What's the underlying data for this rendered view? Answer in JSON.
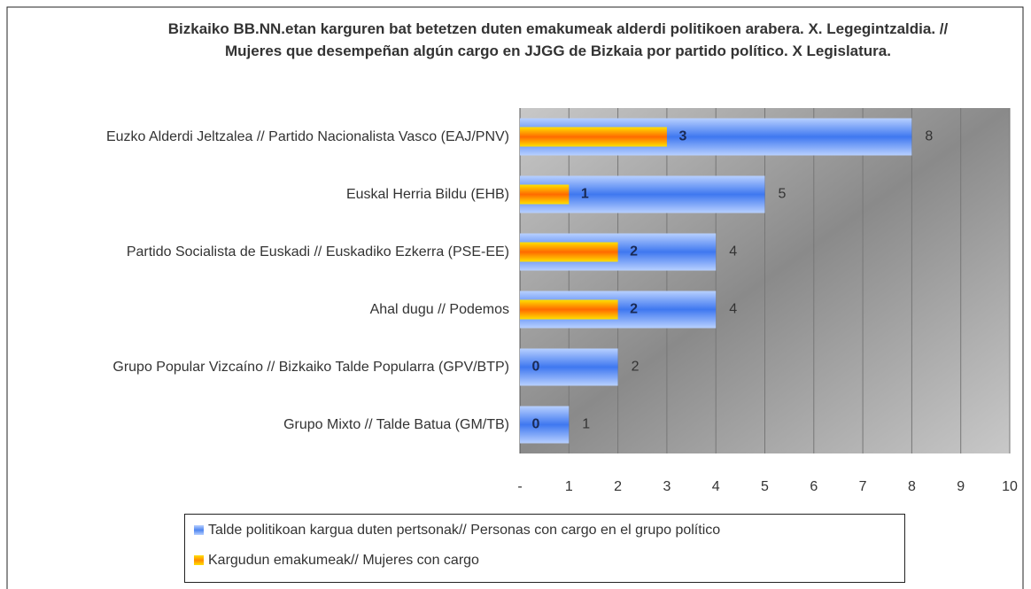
{
  "chart_data": {
    "type": "bar",
    "title": "Bizkaiko BB.NN.etan karguren bat betetzen duten emakumeak alderdi politikoen arabera.  X. Legegintzaldia. // Mujeres que desempeñan algún cargo en JJGG de Bizkaia por partido político. X Legislatura.",
    "orientation": "horizontal",
    "categories": [
      "Euzko Alderdi Jeltzalea // Partido Nacionalista Vasco (EAJ/PNV)",
      "Euskal Herria Bildu (EHB)",
      "Partido Socialista de Euskadi // Euskadiko Ezkerra (PSE-EE)",
      "Ahal dugu // Podemos",
      "Grupo Popular Vizcaíno // Bizkaiko Talde Popularra (GPV/BTP)",
      "Grupo Mixto // Talde Batua (GM/TB)"
    ],
    "series": [
      {
        "name": "Talde politikoan kargua duten pertsonak// Personas con cargo en el grupo político",
        "color": "#4f86f0",
        "values": [
          8,
          5,
          4,
          4,
          2,
          1
        ]
      },
      {
        "name": "Kargudun emakumeak// Mujeres con cargo",
        "color": "#ff8c00",
        "values": [
          3,
          1,
          2,
          2,
          0,
          0
        ]
      }
    ],
    "xlim": [
      0,
      10
    ],
    "xticks": [
      {
        "value": 0,
        "label": "-"
      },
      1,
      2,
      3,
      4,
      5,
      6,
      7,
      8,
      9,
      10
    ],
    "grid": true,
    "legend": "bottom"
  }
}
